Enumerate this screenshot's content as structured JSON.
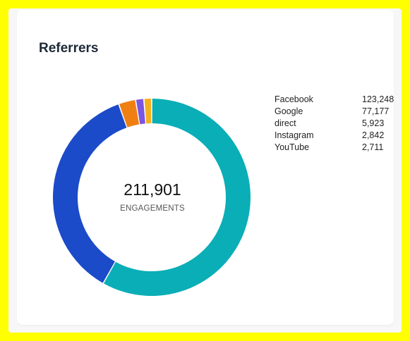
{
  "card": {
    "title": "Referrers",
    "total_value": "211,901",
    "total_label": "ENGAGEMENTS"
  },
  "chart_data": {
    "type": "pie",
    "title": "Referrers",
    "center_value": 211901,
    "center_label": "ENGAGEMENTS",
    "categories": [
      "Facebook",
      "Google",
      "direct",
      "Instagram",
      "YouTube"
    ],
    "values": [
      123248,
      77177,
      5923,
      2842,
      2711
    ],
    "labels": [
      "123,248",
      "77,177",
      "5,923",
      "2,842",
      "2,711"
    ],
    "colors": [
      "#0aaeb7",
      "#1c4bc9",
      "#f07f12",
      "#7b55e3",
      "#f4b01e"
    ],
    "legend_placement": "right"
  }
}
